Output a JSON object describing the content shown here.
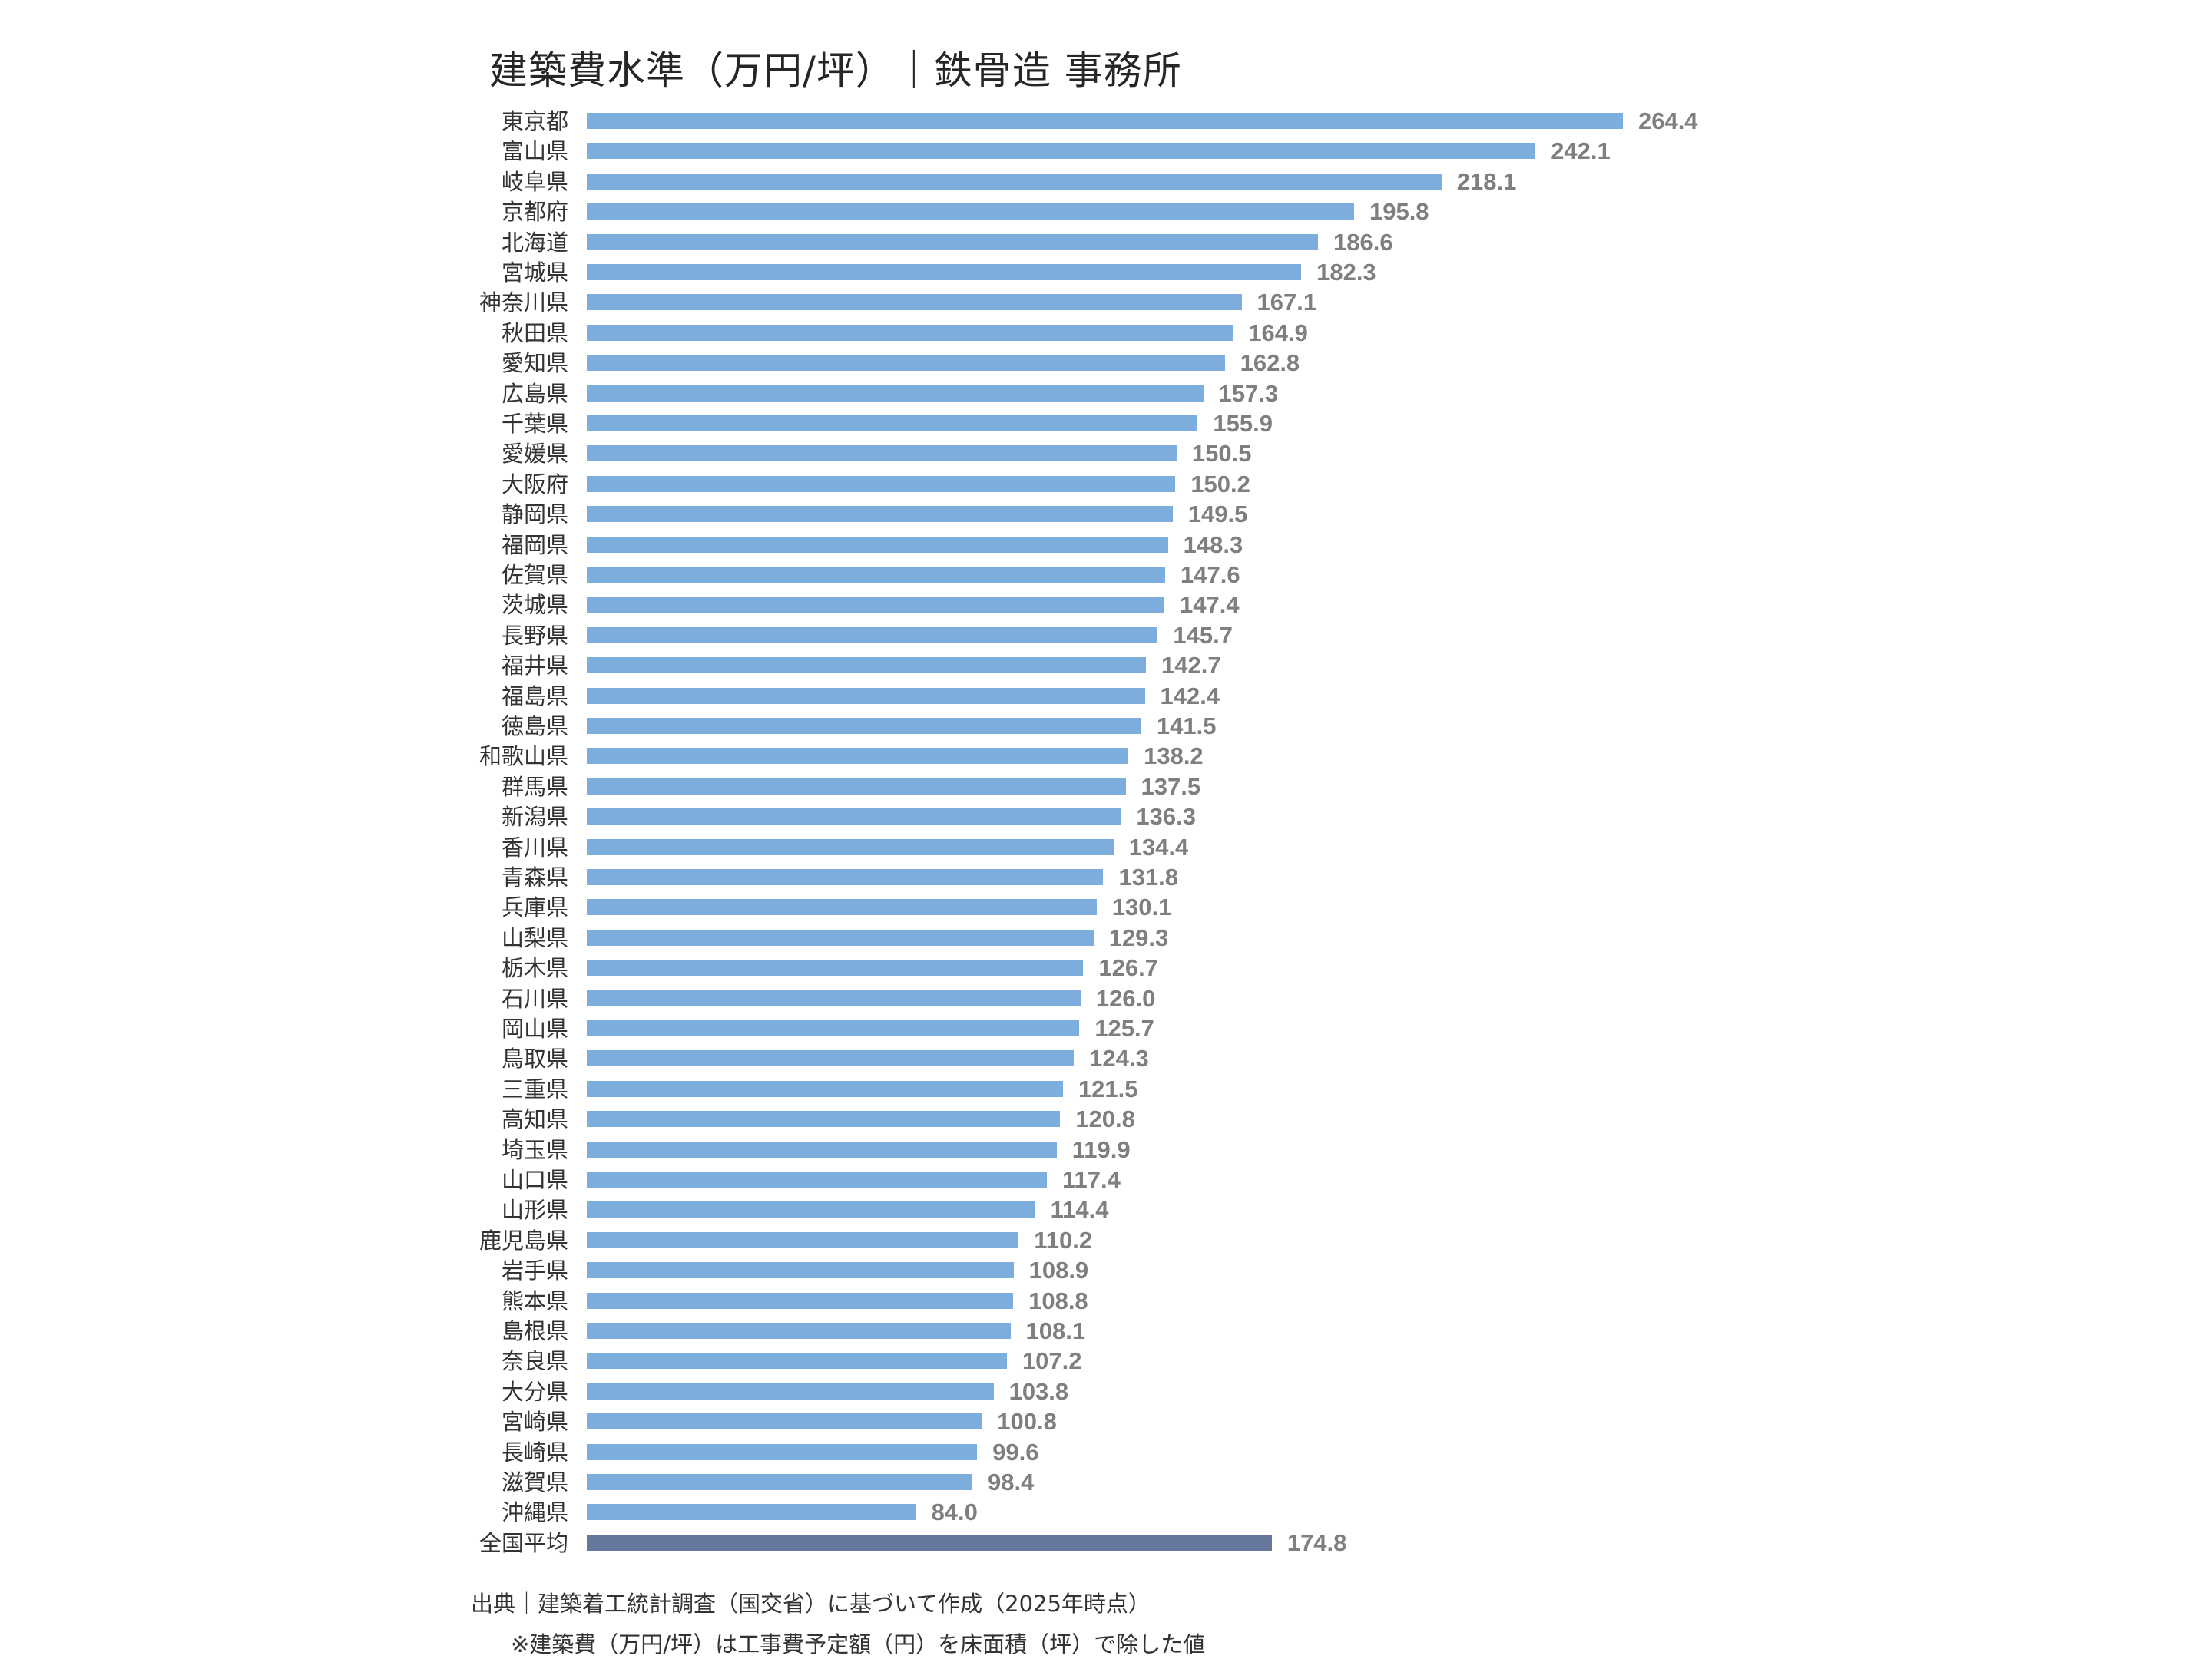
{
  "title": "建築費水準（万円/坪）｜鉄骨造 事務所",
  "footer": {
    "source": "出典｜建築着工統計調査（国交省）に基づいて作成（2025年時点）",
    "note": "※建築費（万円/坪）は工事費予定額（円）を床面積（坪）で除した値"
  },
  "colors": {
    "bar": "#7caddc",
    "average_bar": "#66779c",
    "value_label": "#7f7f7f",
    "category_label": "#333333"
  },
  "chart_data": {
    "type": "bar",
    "orientation": "horizontal",
    "title": "建築費水準（万円/坪）｜鉄骨造 事務所",
    "xlabel": "",
    "ylabel": "",
    "unit": "万円/坪",
    "grid": false,
    "legend": null,
    "data_labels": true,
    "categories": [
      "東京都",
      "富山県",
      "岐阜県",
      "京都府",
      "北海道",
      "宮城県",
      "神奈川県",
      "秋田県",
      "愛知県",
      "広島県",
      "千葉県",
      "愛媛県",
      "大阪府",
      "静岡県",
      "福岡県",
      "佐賀県",
      "茨城県",
      "長野県",
      "福井県",
      "福島県",
      "徳島県",
      "和歌山県",
      "群馬県",
      "新潟県",
      "香川県",
      "青森県",
      "兵庫県",
      "山梨県",
      "栃木県",
      "石川県",
      "岡山県",
      "鳥取県",
      "三重県",
      "高知県",
      "埼玉県",
      "山口県",
      "山形県",
      "鹿児島県",
      "岩手県",
      "熊本県",
      "島根県",
      "奈良県",
      "大分県",
      "宮崎県",
      "長崎県",
      "滋賀県",
      "沖縄県",
      "全国平均"
    ],
    "values": [
      264.4,
      242.1,
      218.1,
      195.8,
      186.6,
      182.3,
      167.1,
      164.9,
      162.8,
      157.3,
      155.9,
      150.5,
      150.2,
      149.5,
      148.3,
      147.6,
      147.4,
      145.7,
      142.7,
      142.4,
      141.5,
      138.2,
      137.5,
      136.3,
      134.4,
      131.8,
      130.1,
      129.3,
      126.7,
      126.0,
      125.7,
      124.3,
      121.5,
      120.8,
      119.9,
      117.4,
      114.4,
      110.2,
      108.9,
      108.8,
      108.1,
      107.2,
      103.8,
      100.8,
      99.6,
      98.4,
      84.0,
      174.8
    ],
    "labels": [
      "264.4",
      "242.1",
      "218.1",
      "195.8",
      "186.6",
      "182.3",
      "167.1",
      "164.9",
      "162.8",
      "157.3",
      "155.9",
      "150.5",
      "150.2",
      "149.5",
      "148.3",
      "147.6",
      "147.4",
      "145.7",
      "142.7",
      "142.4",
      "141.5",
      "138.2",
      "137.5",
      "136.3",
      "134.4",
      "131.8",
      "130.1",
      "129.3",
      "126.7",
      "126.0",
      "125.7",
      "124.3",
      "121.5",
      "120.8",
      "119.9",
      "117.4",
      "114.4",
      "110.2",
      "108.9",
      "108.8",
      "108.1",
      "107.2",
      "103.8",
      "100.8",
      "99.6",
      "98.4",
      "84.0",
      "174.8"
    ],
    "highlight": [
      "全国平均"
    ],
    "xlim": [
      0,
      280
    ]
  }
}
